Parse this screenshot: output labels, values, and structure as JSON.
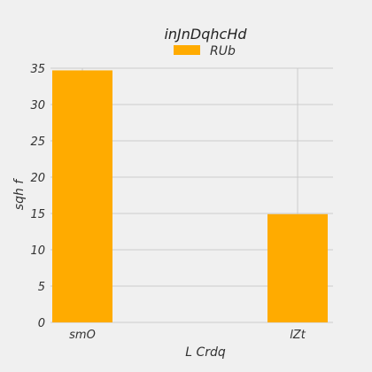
{
  "chart_data": {
    "type": "bar",
    "title": "inJnDqhcHd",
    "xlabel": "L Crdq",
    "ylabel": "sqh f",
    "categories": [
      "smO",
      "lZt"
    ],
    "series": [
      {
        "name": "RUb",
        "values": [
          34.7,
          14.9
        ]
      }
    ],
    "ylim": [
      0,
      35
    ],
    "yticks": [
      0,
      5,
      10,
      15,
      20,
      25,
      30,
      35
    ],
    "grid": true,
    "legend": "top-center",
    "colors": {
      "bar": "#ffab00",
      "background": "#f0f0f0",
      "grid": "#cbcbcb"
    }
  }
}
